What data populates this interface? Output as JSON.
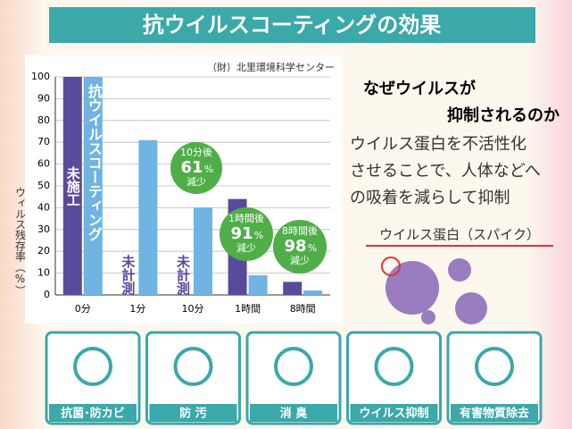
{
  "chart_data": {
    "type": "bar",
    "title": "抗ウイルスコーティングの効果",
    "source": "（財）北里環境科学センター",
    "y_label": "ウィルス残存率（%）",
    "categories": [
      "0分",
      "1分",
      "10分",
      "1時間",
      "8時間"
    ],
    "series": [
      {
        "name": "未施工",
        "color": "#5a4a9c",
        "values": [
          100,
          null,
          null,
          44,
          6
        ]
      },
      {
        "name": "抗ウイルスコーティング",
        "color": "#6fb4e2",
        "values": [
          100,
          71,
          40,
          9,
          2
        ]
      }
    ],
    "missing_label": "未計測",
    "ylim": [
      0,
      100
    ],
    "yticks": [
      0,
      10,
      20,
      30,
      40,
      50,
      60,
      70,
      80,
      90,
      100
    ],
    "grid": true,
    "annotations": [
      {
        "time": "10分後",
        "value": "61",
        "unit": "%",
        "text": "減少",
        "category": 2
      },
      {
        "time": "1時間後",
        "value": "91",
        "unit": "%",
        "text": "減少",
        "category": 3
      },
      {
        "time": "8時間後",
        "value": "98",
        "unit": "%",
        "text": "減少",
        "category": 4
      }
    ]
  },
  "explanation": {
    "heading": [
      "なぜウイルスが",
      "抑制されるのか"
    ],
    "body": [
      "ウイルス蛋白を不活性化",
      "させることで、人体などへ",
      "の吸着を減らして抑制"
    ],
    "illustration_label": "ウイルス蛋白（スパイク）"
  },
  "features": [
    "抗菌･防カビ",
    "防 汚",
    "消 臭",
    "ウイルス抑制",
    "有害物質除去"
  ]
}
